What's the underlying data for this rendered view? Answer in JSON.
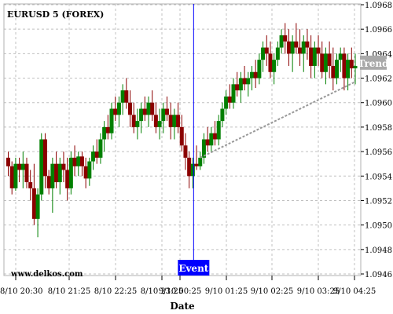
{
  "chart_data": {
    "type": "candlestick",
    "title": "EURUSD 5 (FOREX)",
    "watermark": "www.delkos.com",
    "xlabel": "Date",
    "ylabel": "",
    "ylim": [
      1.0946,
      1.0968
    ],
    "y_ticks": [
      "1.0946",
      "1.0948",
      "1.0950",
      "1.0952",
      "1.0954",
      "1.0956",
      "1.0958",
      "1.0960",
      "1.0962",
      "1.0964",
      "1.0966",
      "1.0968"
    ],
    "x_ticks": [
      "8/10 20:30",
      "8/10 21:25",
      "8/10 22:25",
      "8/10 23:25",
      "9/10 00:25",
      "9/10 01:25",
      "9/10 02:25",
      "9/10 03:25",
      "9/10 04:25"
    ],
    "grid": true,
    "event_label": "Event",
    "event_index": 50,
    "trend_label": "Trend",
    "trend_line": {
      "from_index": 52,
      "from_value": 1.09555,
      "to_index": 94,
      "to_value": 1.09617
    },
    "colors": {
      "up": "#008000",
      "down": "#8b0000",
      "event": "#0000ff",
      "trend": "#999999",
      "grid": "#c0c0c0"
    },
    "candles": [
      [
        1.09555,
        1.0956,
        1.0954,
        1.09548
      ],
      [
        1.09548,
        1.09552,
        1.09525,
        1.0953
      ],
      [
        1.0953,
        1.09555,
        1.09528,
        1.0955
      ],
      [
        1.0955,
        1.09555,
        1.09535,
        1.09545
      ],
      [
        1.09545,
        1.0956,
        1.0953,
        1.0955
      ],
      [
        1.0955,
        1.09555,
        1.0953,
        1.09535
      ],
      [
        1.09535,
        1.09545,
        1.0952,
        1.0953
      ],
      [
        1.0953,
        1.0955,
        1.095,
        1.09505
      ],
      [
        1.09505,
        1.0953,
        1.0949,
        1.09525
      ],
      [
        1.09525,
        1.09575,
        1.0952,
        1.0957
      ],
      [
        1.0957,
        1.09575,
        1.0953,
        1.0954
      ],
      [
        1.0954,
        1.09545,
        1.09525,
        1.0953
      ],
      [
        1.0953,
        1.09555,
        1.0951,
        1.0955
      ],
      [
        1.0955,
        1.0956,
        1.0953,
        1.09535
      ],
      [
        1.09535,
        1.09555,
        1.09525,
        1.0955
      ],
      [
        1.0955,
        1.0956,
        1.09535,
        1.09545
      ],
      [
        1.09545,
        1.09555,
        1.0952,
        1.0953
      ],
      [
        1.0953,
        1.0956,
        1.09525,
        1.09555
      ],
      [
        1.09555,
        1.09565,
        1.0954,
        1.09548
      ],
      [
        1.09548,
        1.0956,
        1.0954,
        1.09556
      ],
      [
        1.09556,
        1.0956,
        1.0954,
        1.09548
      ],
      [
        1.09548,
        1.09555,
        1.0953,
        1.09538
      ],
      [
        1.09538,
        1.09555,
        1.09532,
        1.09552
      ],
      [
        1.09552,
        1.09565,
        1.09545,
        1.0956
      ],
      [
        1.0956,
        1.0957,
        1.0955,
        1.09555
      ],
      [
        1.09555,
        1.09575,
        1.0955,
        1.0957
      ],
      [
        1.0957,
        1.09585,
        1.0956,
        1.0958
      ],
      [
        1.0958,
        1.0959,
        1.0957,
        1.09575
      ],
      [
        1.09575,
        1.096,
        1.0957,
        1.09595
      ],
      [
        1.09595,
        1.09605,
        1.09585,
        1.0959
      ],
      [
        1.0959,
        1.09605,
        1.0958,
        1.096
      ],
      [
        1.096,
        1.09615,
        1.0959,
        1.0961
      ],
      [
        1.0961,
        1.0962,
        1.09595,
        1.096
      ],
      [
        1.096,
        1.0961,
        1.0958,
        1.0959
      ],
      [
        1.0959,
        1.096,
        1.09575,
        1.0958
      ],
      [
        1.0958,
        1.09595,
        1.0957,
        1.09585
      ],
      [
        1.09585,
        1.096,
        1.09575,
        1.09595
      ],
      [
        1.09595,
        1.09605,
        1.09585,
        1.0959
      ],
      [
        1.0959,
        1.09605,
        1.0958,
        1.096
      ],
      [
        1.096,
        1.0961,
        1.09585,
        1.0959
      ],
      [
        1.0959,
        1.096,
        1.09575,
        1.0958
      ],
      [
        1.0958,
        1.09595,
        1.0957,
        1.09585
      ],
      [
        1.09585,
        1.096,
        1.09575,
        1.09595
      ],
      [
        1.09595,
        1.09605,
        1.09585,
        1.0959
      ],
      [
        1.0959,
        1.096,
        1.0957,
        1.0958
      ],
      [
        1.0958,
        1.09595,
        1.0957,
        1.0959
      ],
      [
        1.0959,
        1.096,
        1.09575,
        1.0958
      ],
      [
        1.0958,
        1.0959,
        1.0956,
        1.09565
      ],
      [
        1.09565,
        1.09575,
        1.09545,
        1.09555
      ],
      [
        1.09555,
        1.0956,
        1.0953,
        1.0954
      ],
      [
        1.0954,
        1.09555,
        1.0953,
        1.0955
      ],
      [
        1.0955,
        1.09565,
        1.09545,
        1.09548
      ],
      [
        1.09548,
        1.0956,
        1.09545,
        1.09555
      ],
      [
        1.09555,
        1.09575,
        1.0955,
        1.0957
      ],
      [
        1.0957,
        1.0958,
        1.0956,
        1.09565
      ],
      [
        1.09565,
        1.0958,
        1.0956,
        1.09575
      ],
      [
        1.09575,
        1.09585,
        1.09565,
        1.0957
      ],
      [
        1.0957,
        1.0959,
        1.09565,
        1.09585
      ],
      [
        1.09585,
        1.096,
        1.0958,
        1.09595
      ],
      [
        1.09595,
        1.0961,
        1.0959,
        1.09605
      ],
      [
        1.09605,
        1.09615,
        1.09595,
        1.096
      ],
      [
        1.096,
        1.0962,
        1.09595,
        1.09615
      ],
      [
        1.09615,
        1.09625,
        1.09605,
        1.0961
      ],
      [
        1.0961,
        1.09625,
        1.096,
        1.0962
      ],
      [
        1.0962,
        1.0963,
        1.0961,
        1.09615
      ],
      [
        1.09615,
        1.09625,
        1.09605,
        1.0962
      ],
      [
        1.0962,
        1.0963,
        1.0961,
        1.09625
      ],
      [
        1.09625,
        1.09635,
        1.09612,
        1.0962
      ],
      [
        1.0962,
        1.0964,
        1.09615,
        1.09635
      ],
      [
        1.09635,
        1.0965,
        1.09625,
        1.09645
      ],
      [
        1.09645,
        1.09655,
        1.0963,
        1.0964
      ],
      [
        1.0964,
        1.0965,
        1.0962,
        1.09625
      ],
      [
        1.09625,
        1.0964,
        1.09615,
        1.09635
      ],
      [
        1.09635,
        1.0965,
        1.0963,
        1.09645
      ],
      [
        1.09645,
        1.0966,
        1.0964,
        1.09655
      ],
      [
        1.09655,
        1.09665,
        1.0964,
        1.0965
      ],
      [
        1.0965,
        1.0966,
        1.0963,
        1.0964
      ],
      [
        1.0964,
        1.09655,
        1.09625,
        1.0965
      ],
      [
        1.0965,
        1.09665,
        1.0964,
        1.09645
      ],
      [
        1.09645,
        1.0966,
        1.0963,
        1.0964
      ],
      [
        1.0964,
        1.09655,
        1.09625,
        1.0965
      ],
      [
        1.0965,
        1.0966,
        1.09635,
        1.09645
      ],
      [
        1.09645,
        1.09655,
        1.0962,
        1.0963
      ],
      [
        1.0963,
        1.0965,
        1.0962,
        1.09645
      ],
      [
        1.09645,
        1.09655,
        1.0963,
        1.0964
      ],
      [
        1.0964,
        1.0965,
        1.0962,
        1.09625
      ],
      [
        1.09625,
        1.09645,
        1.09615,
        1.0964
      ],
      [
        1.0964,
        1.0965,
        1.0962,
        1.0963
      ],
      [
        1.0963,
        1.09645,
        1.0961,
        1.0962
      ],
      [
        1.0962,
        1.0964,
        1.09615,
        1.09635
      ],
      [
        1.09635,
        1.09645,
        1.09625,
        1.0964
      ],
      [
        1.0964,
        1.09645,
        1.0961,
        1.0962
      ],
      [
        1.0962,
        1.0964,
        1.0961,
        1.09635
      ],
      [
        1.09635,
        1.09645,
        1.0962,
        1.09628
      ],
      [
        1.09628,
        1.0964,
        1.09615,
        1.0963
      ]
    ]
  }
}
